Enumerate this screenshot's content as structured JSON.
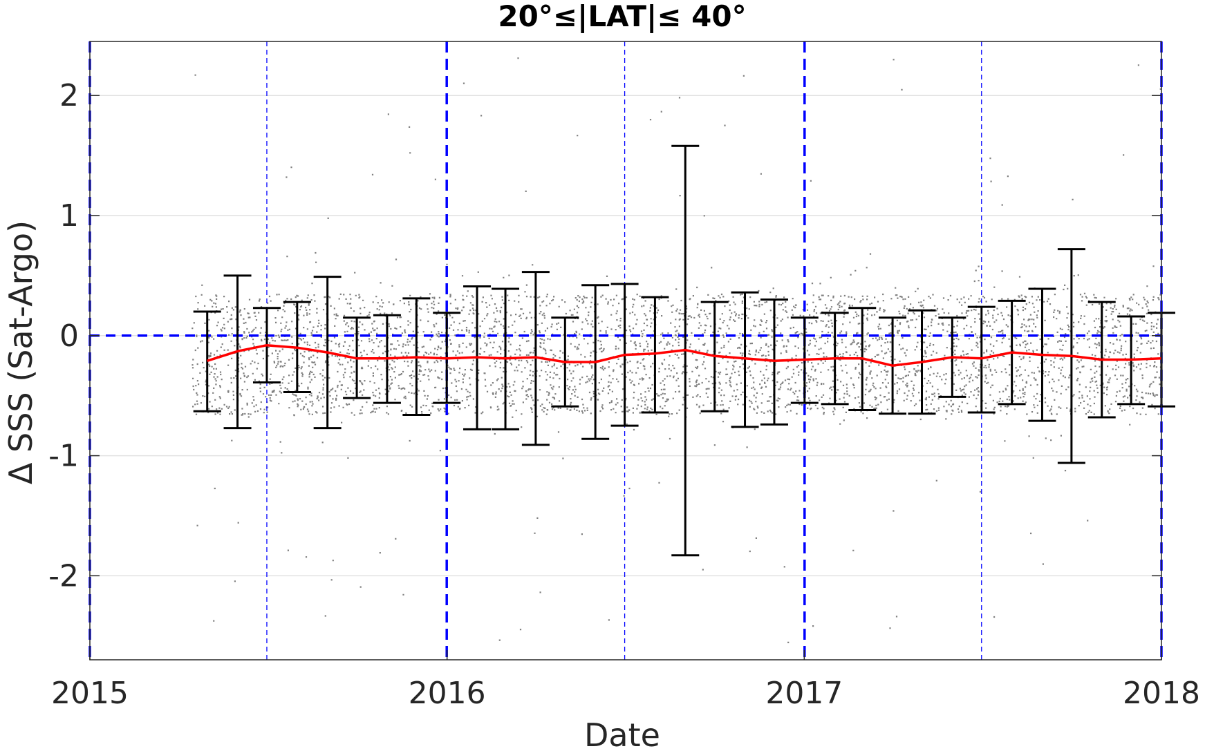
{
  "chart_data": {
    "type": "scatter",
    "title": "20°≤|LAT|≤ 40°",
    "xlabel": "Date",
    "ylabel": "Δ SSS (Sat-Argo)",
    "xlim": [
      "2015-01-01",
      "2018-01-01"
    ],
    "ylim": [
      -2.7,
      2.45
    ],
    "x_ticks": [
      "2015",
      "2016",
      "2017",
      "2018"
    ],
    "y_ticks": [
      2,
      1,
      0,
      -1,
      -2
    ],
    "y_tick_labels": [
      "2",
      "1",
      "0",
      "-1",
      "-2"
    ],
    "grid": "horizontal",
    "legend": "none",
    "colors": {
      "scatter": "#808080",
      "mean_line": "#ff0000",
      "error_bars": "#000000",
      "reference_lines": "#0000ff"
    },
    "scatter_cloud": {
      "date_range": [
        "2015-04-15",
        "2018-01-01"
      ],
      "core_band": [
        -0.65,
        0.35
      ],
      "outlier_range": [
        -2.65,
        2.4
      ]
    },
    "reference_lines": {
      "horizontal_y": 0,
      "vertical_year_lines": [
        "2015-01-01",
        "2016-01-01",
        "2017-01-01",
        "2018-01-01"
      ],
      "vertical_midyear_lines": [
        "2015-07-01",
        "2016-07-01",
        "2017-07-01"
      ]
    },
    "series": [
      {
        "date": [
          "2015-05-01",
          "2015-06-01",
          "2015-07-01",
          "2015-08-01",
          "2015-09-01",
          "2015-10-01",
          "2015-11-01",
          "2015-12-01",
          "2016-01-01",
          "2016-02-01",
          "2016-03-01",
          "2016-04-01",
          "2016-05-01",
          "2016-06-01",
          "2016-07-01",
          "2016-08-01",
          "2016-09-01",
          "2016-10-01",
          "2016-11-01",
          "2016-12-01",
          "2017-01-01",
          "2017-02-01",
          "2017-03-01",
          "2017-04-01",
          "2017-05-01",
          "2017-06-01",
          "2017-07-01",
          "2017-08-01",
          "2017-09-01",
          "2017-10-01",
          "2017-11-01",
          "2017-12-01",
          "2018-01-01"
        ],
        "mean": [
          -0.21,
          -0.13,
          -0.08,
          -0.1,
          -0.14,
          -0.19,
          -0.19,
          -0.18,
          -0.19,
          -0.18,
          -0.19,
          -0.18,
          -0.22,
          -0.22,
          -0.16,
          -0.15,
          -0.12,
          -0.17,
          -0.19,
          -0.21,
          -0.2,
          -0.19,
          -0.19,
          -0.25,
          -0.22,
          -0.18,
          -0.19,
          -0.14,
          -0.16,
          -0.17,
          -0.2,
          -0.2,
          -0.19
        ],
        "upper": [
          0.2,
          0.5,
          0.23,
          0.28,
          0.49,
          0.15,
          0.17,
          0.31,
          0.19,
          0.41,
          0.39,
          0.53,
          0.15,
          0.42,
          0.43,
          0.32,
          1.58,
          0.28,
          0.36,
          0.3,
          0.15,
          0.19,
          0.23,
          0.15,
          0.21,
          0.15,
          0.24,
          0.29,
          0.39,
          0.72,
          0.28,
          0.16,
          0.19
        ],
        "lower": [
          -0.63,
          -0.77,
          -0.39,
          -0.47,
          -0.77,
          -0.52,
          -0.56,
          -0.66,
          -0.56,
          -0.78,
          -0.78,
          -0.91,
          -0.59,
          -0.86,
          -0.75,
          -0.64,
          -1.83,
          -0.63,
          -0.76,
          -0.74,
          -0.56,
          -0.57,
          -0.62,
          -0.65,
          -0.65,
          -0.51,
          -0.64,
          -0.57,
          -0.71,
          -1.06,
          -0.68,
          -0.57,
          -0.59
        ]
      }
    ]
  }
}
